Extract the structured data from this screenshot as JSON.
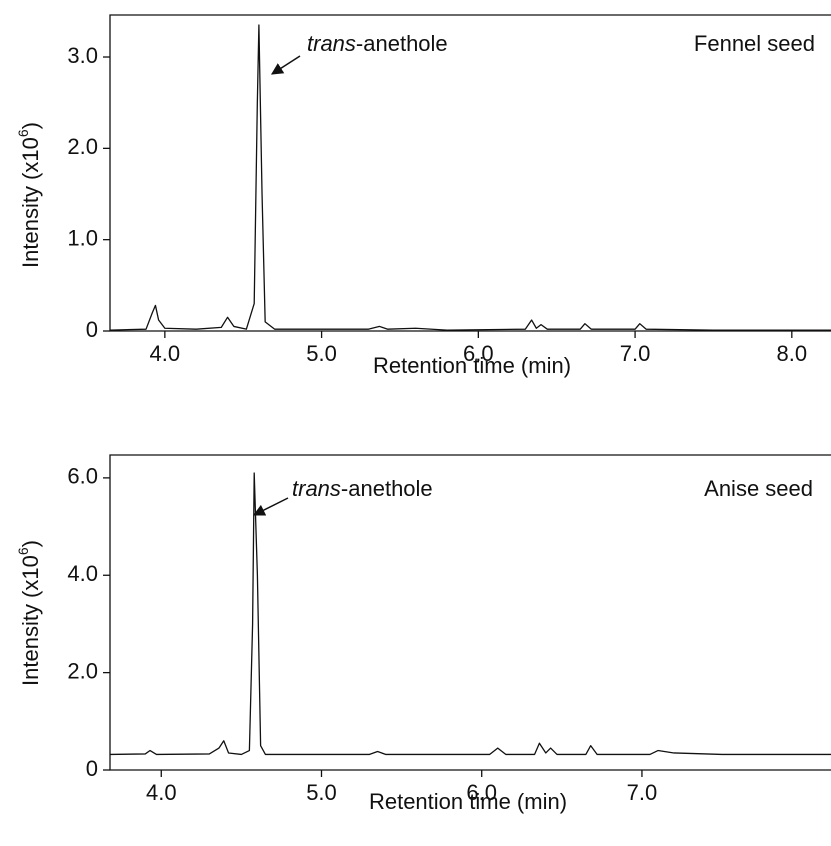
{
  "chart_data": [
    {
      "type": "line",
      "title": "Fennel seed",
      "annotation": [
        "trans",
        "-anethole"
      ],
      "xlabel": "Retention time (min)",
      "ylabel": [
        "Intensity (x10",
        "6",
        ")"
      ],
      "xlim": [
        3.65,
        8.25
      ],
      "xticks": [
        {
          "value": 4,
          "label": "4.0"
        },
        {
          "value": 5,
          "label": "5.0"
        },
        {
          "value": 6,
          "label": "6.0"
        },
        {
          "value": 7,
          "label": "7.0"
        },
        {
          "value": 8,
          "label": "8.0"
        }
      ],
      "ylim": [
        0,
        3.46
      ],
      "yticks": [
        0,
        {
          "value": 1,
          "label": "1.0"
        },
        {
          "value": 2,
          "label": "2.0"
        },
        {
          "value": 3,
          "label": "3.0"
        }
      ],
      "color": "#111111",
      "x": [
        3.65,
        3.88,
        3.92,
        3.94,
        3.96,
        4.0,
        4.2,
        4.36,
        4.4,
        4.44,
        4.52,
        4.57,
        4.59,
        4.6,
        4.62,
        4.64,
        4.7,
        5.3,
        5.37,
        5.42,
        5.6,
        5.8,
        6.3,
        6.34,
        6.37,
        6.4,
        6.44,
        6.65,
        6.68,
        6.72,
        7.0,
        7.03,
        7.07,
        7.5,
        8.25
      ],
      "values": [
        0.01,
        0.02,
        0.2,
        0.28,
        0.12,
        0.03,
        0.02,
        0.04,
        0.15,
        0.05,
        0.02,
        0.3,
        2.5,
        3.35,
        1.5,
        0.1,
        0.02,
        0.02,
        0.05,
        0.02,
        0.03,
        0.01,
        0.02,
        0.12,
        0.03,
        0.07,
        0.02,
        0.02,
        0.08,
        0.02,
        0.02,
        0.08,
        0.02,
        0.01,
        0.01
      ]
    },
    {
      "type": "line",
      "title": "Anise seed",
      "annotation": [
        "trans",
        "-anethole"
      ],
      "xlabel": "Retention time (min)",
      "ylabel": [
        "Intensity (x10",
        "6",
        ")"
      ],
      "xlim": [
        3.68,
        8.18
      ],
      "xticks": [
        {
          "value": 4,
          "label": "4.0"
        },
        {
          "value": 5,
          "label": "5.0"
        },
        {
          "value": 6,
          "label": "6.0"
        },
        {
          "value": 7,
          "label": "7.0"
        }
      ],
      "ylim": [
        0,
        6.47
      ],
      "yticks": [
        0,
        {
          "value": 2,
          "label": "2.0"
        },
        {
          "value": 4,
          "label": "4.0"
        },
        {
          "value": 6,
          "label": "6.0"
        }
      ],
      "color": "#111111",
      "x": [
        3.68,
        3.9,
        3.93,
        3.97,
        4.3,
        4.36,
        4.39,
        4.42,
        4.5,
        4.55,
        4.57,
        4.58,
        4.6,
        4.62,
        4.65,
        5.3,
        5.35,
        5.4,
        6.05,
        6.1,
        6.15,
        6.33,
        6.36,
        6.4,
        6.43,
        6.47,
        6.65,
        6.68,
        6.72,
        7.05,
        7.1,
        7.2,
        7.5,
        8.18
      ],
      "values": [
        0.32,
        0.33,
        0.4,
        0.32,
        0.33,
        0.45,
        0.6,
        0.35,
        0.32,
        0.4,
        3.0,
        6.1,
        4.0,
        0.5,
        0.32,
        0.32,
        0.38,
        0.32,
        0.32,
        0.45,
        0.32,
        0.32,
        0.55,
        0.35,
        0.45,
        0.32,
        0.32,
        0.5,
        0.32,
        0.32,
        0.4,
        0.35,
        0.32,
        0.32
      ]
    }
  ]
}
